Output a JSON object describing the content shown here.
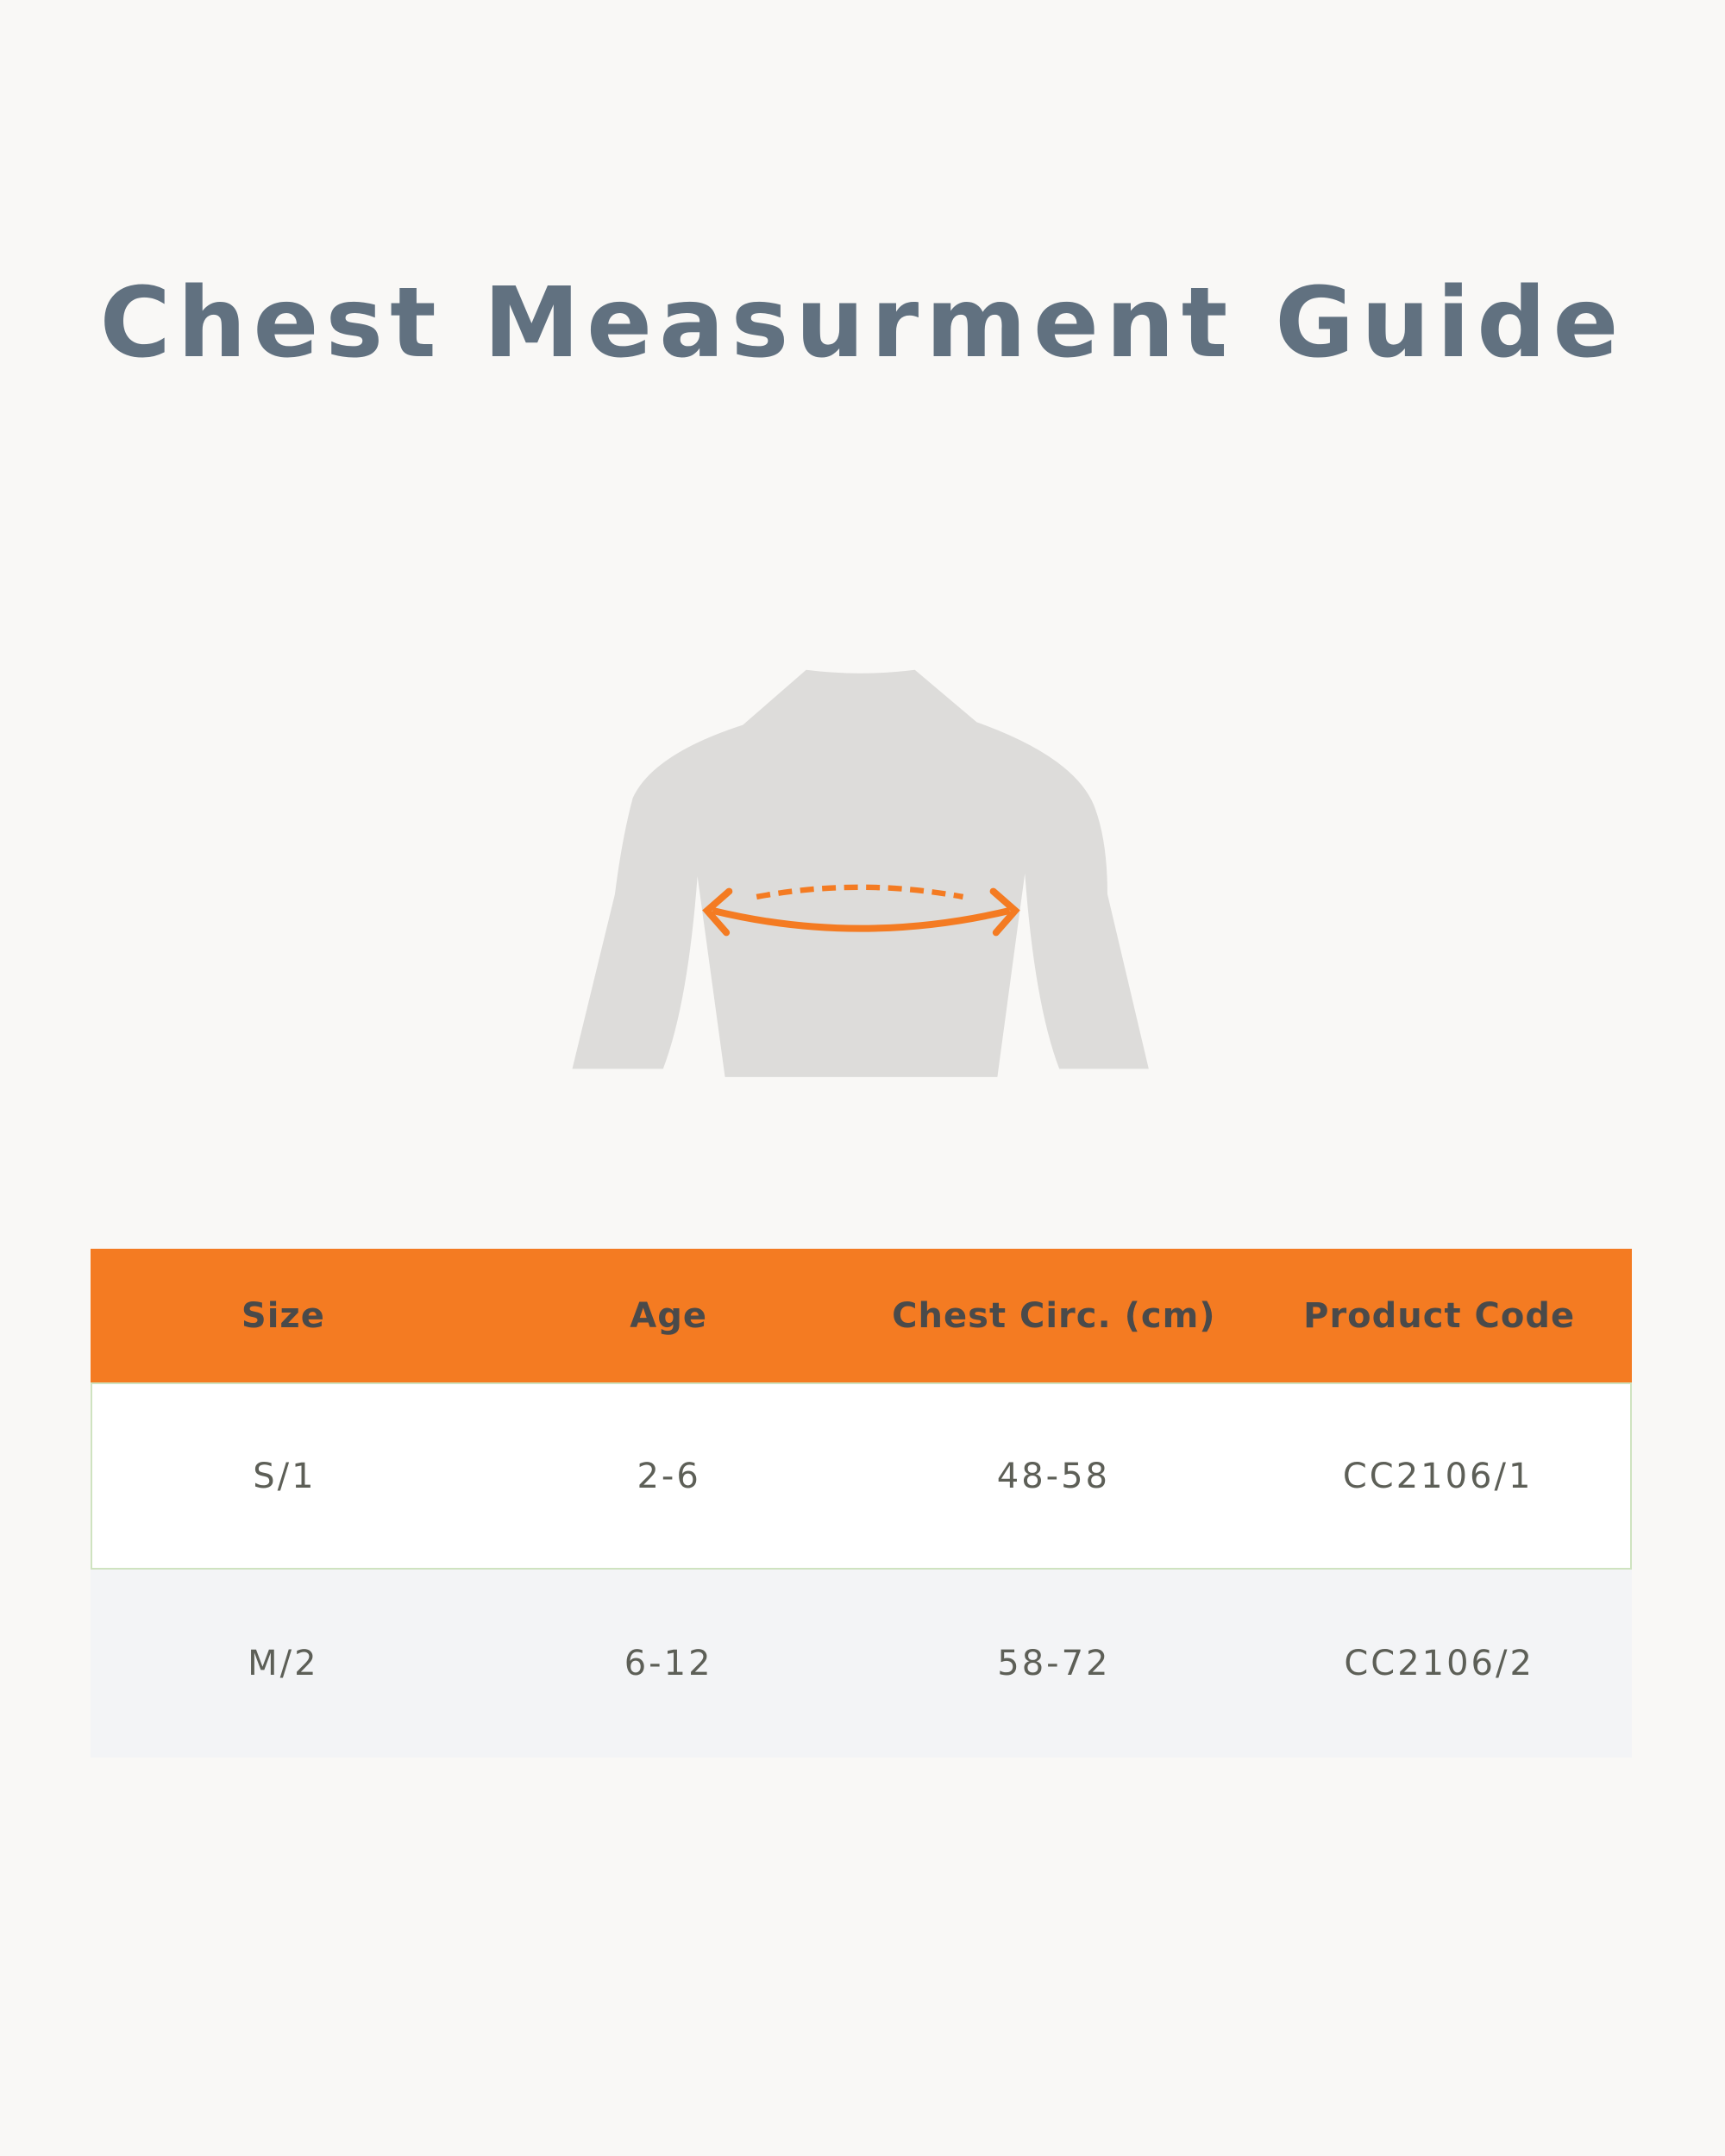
{
  "header": {
    "title": "Chest Measurment Guide"
  },
  "table": {
    "columns": [
      "Size",
      "Age",
      "Chest Circ. (cm)",
      "Product Code"
    ],
    "rows": [
      [
        "S/1",
        "2-6",
        "48-58",
        "CC2106/1"
      ],
      [
        "M/2",
        "6-12",
        "58-72",
        "CC2106/2"
      ]
    ]
  }
}
